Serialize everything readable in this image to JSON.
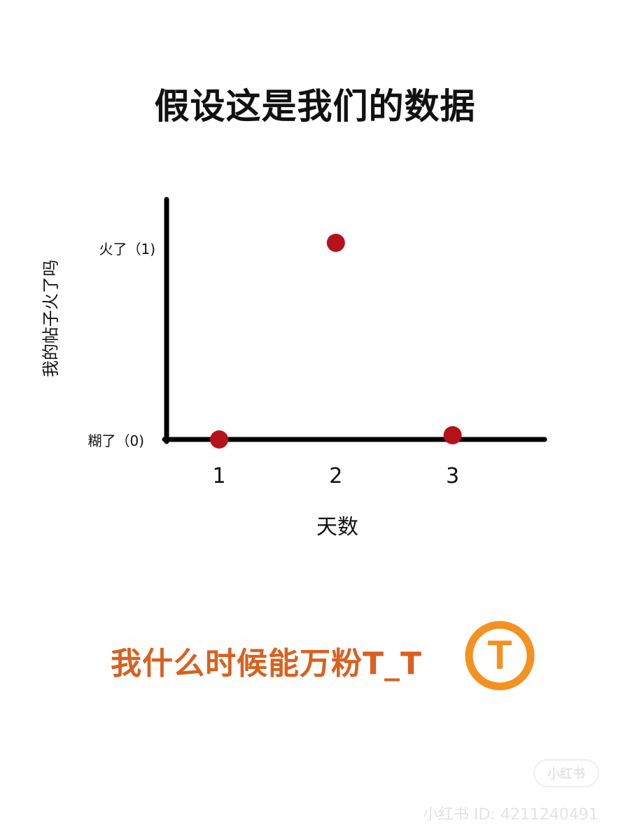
{
  "title": "假设这是我们的数据",
  "chart_data": {
    "type": "scatter",
    "title": "假设这是我们的数据",
    "xlabel": "天数",
    "ylabel": "我的帖子火了吗",
    "x": [
      1,
      2,
      3
    ],
    "y": [
      0,
      1,
      0
    ],
    "x_ticks": [
      "1",
      "2",
      "3"
    ],
    "y_ticks": [
      {
        "value": 1,
        "label": "火了（1)"
      },
      {
        "value": 0,
        "label": "糊了（0)"
      }
    ],
    "xlim": [
      0.55,
      3.8
    ],
    "ylim": [
      0,
      1
    ],
    "grid": false,
    "point_color": "#b5121b",
    "axis_color": "#000000"
  },
  "caption": "我什么时候能万粉T_T",
  "badge": {
    "letter": "T",
    "color": "#f39121",
    "icon": "orange-t-badge"
  },
  "watermark": {
    "logo": "小红书",
    "id_text": "小红书 ID: 4211240491"
  }
}
